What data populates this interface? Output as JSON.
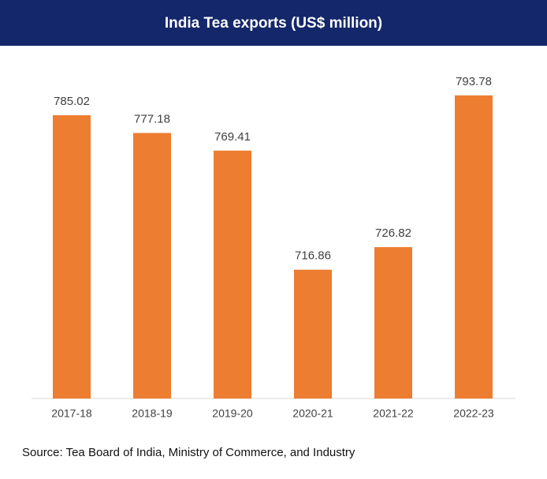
{
  "chart_data": {
    "type": "bar",
    "title": "India Tea exports (US$ million)",
    "categories": [
      "2017-18",
      "2018-19",
      "2019-20",
      "2020-21",
      "2021-22",
      "2022-23"
    ],
    "values": [
      785.02,
      777.18,
      769.41,
      716.86,
      726.82,
      793.78
    ],
    "color": "#ed7d31",
    "ylim": [
      660,
      800
    ],
    "source": "Source: Tea Board of India, Ministry of Commerce, and Industry"
  }
}
